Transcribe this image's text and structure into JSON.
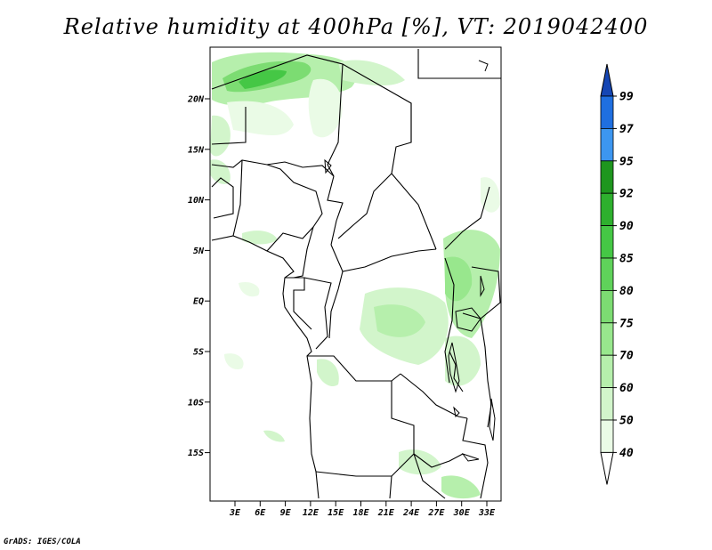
{
  "title": "Relative humidity at 400hPa [%], VT: 2019042400",
  "credit": "GrADS: IGES/COLA",
  "map": {
    "lat_labels": [
      "20N",
      "15N",
      "10N",
      "5N",
      "EQ",
      "5S",
      "10S",
      "15S"
    ],
    "lon_labels": [
      "3E",
      "6E",
      "9E",
      "12E",
      "15E",
      "18E",
      "21E",
      "24E",
      "27E",
      "30E",
      "33E"
    ],
    "fill_colors": {
      "40": "#eafbe6",
      "50": "#d2f5cb",
      "60": "#b6efac",
      "70": "#98e78d",
      "75": "#7cdc72",
      "80": "#5fd25a",
      "85": "#45c745",
      "90": "#2eb02e",
      "92": "#1e961e",
      "95": "#3c96f0",
      "97": "#1f6fe0",
      "99": "#1546b4"
    },
    "border_color": "#000000"
  },
  "colorbar": {
    "labels": [
      "99",
      "97",
      "95",
      "92",
      "90",
      "85",
      "80",
      "75",
      "70",
      "60",
      "50",
      "40"
    ],
    "colors": [
      "#1546b4",
      "#1f6fe0",
      "#3c96f0",
      "#1e961e",
      "#2eb02e",
      "#45c745",
      "#5fd25a",
      "#7cdc72",
      "#98e78d",
      "#b6efac",
      "#d2f5cb",
      "#eafbe6",
      "#ffffff"
    ]
  }
}
